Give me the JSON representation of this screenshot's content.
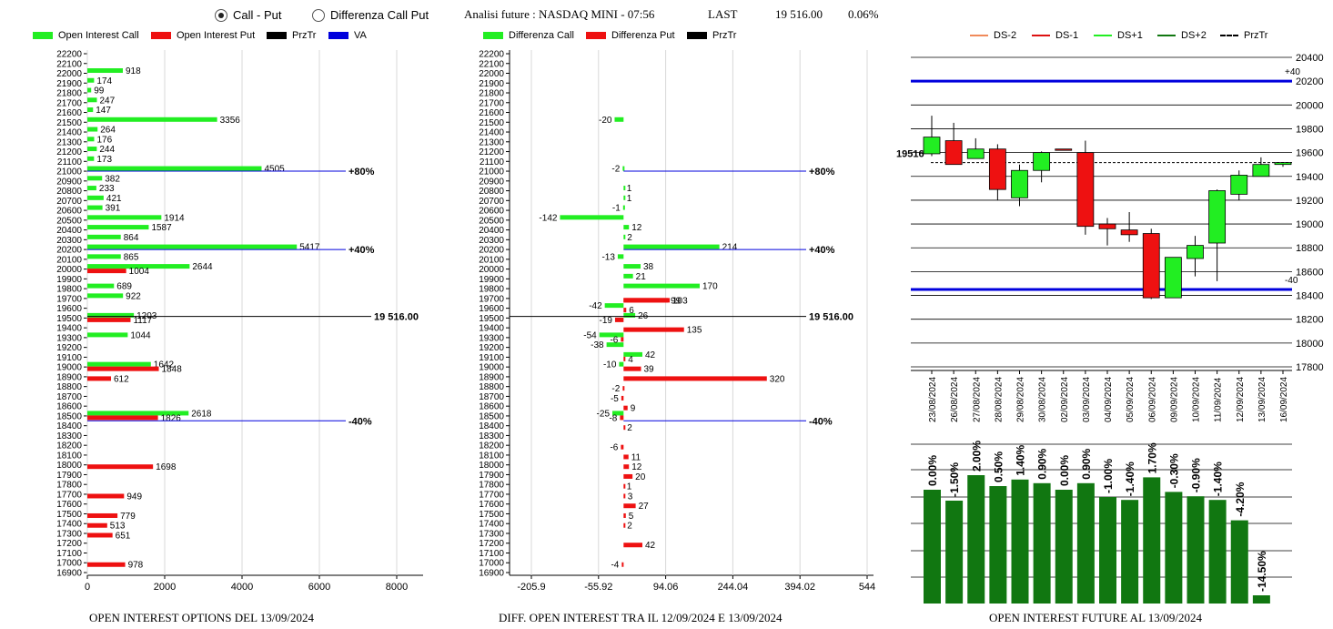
{
  "header": {
    "radio_callput": "Call - Put",
    "radio_diff": "Differenza Call Put",
    "title": "Analisi future : NASDAQ MINI - 07:56",
    "last_label": "LAST",
    "last_value": "19 516.00",
    "last_pct": "0.06%"
  },
  "colors": {
    "call": "#22ee22",
    "put": "#ee1111",
    "prztr": "#000000",
    "va": "#0000dd",
    "future_bar": "#117711"
  },
  "legend_left": [
    "Open Interest Call",
    "Open Interest Put",
    "PrzTr",
    "VA"
  ],
  "legend_mid": [
    "Differenza Call",
    "Differenza Put",
    "PrzTr"
  ],
  "legend_right": [
    "DS-2",
    "DS-1",
    "DS+1",
    "DS+2",
    "PrzTr"
  ],
  "captions": {
    "left": "OPEN INTEREST OPTIONS DEL 13/09/2024",
    "mid": "DIFF. OPEN INTEREST TRA IL 12/09/2024 E 13/09/2024",
    "right": "OPEN INTEREST FUTURE AL 13/09/2024"
  },
  "chart_data": [
    {
      "type": "bar",
      "orientation": "horizontal",
      "strike_labels": [
        "22200",
        "22100",
        "22000",
        "21900",
        "21800",
        "21700",
        "21600",
        "21500",
        "21400",
        "21300",
        "21200",
        "21100",
        "21000",
        "20900",
        "20800",
        "20700",
        "20600",
        "20500",
        "20400",
        "20300",
        "20200",
        "20100",
        "20000",
        "19900",
        "19800",
        "19700",
        "19600",
        "19500",
        "19400",
        "19300",
        "19200",
        "19100",
        "19000",
        "18900",
        "18800",
        "18700",
        "18600",
        "18500",
        "18400",
        "18300",
        "18200",
        "18100",
        "18000",
        "17900",
        "17800",
        "17700",
        "17600",
        "17500",
        "17400",
        "17300",
        "17200",
        "17100",
        "17000",
        "16900"
      ],
      "x_ticks": [
        "0",
        "2000",
        "4000",
        "6000",
        "8000"
      ],
      "xlim": [
        0,
        8000
      ],
      "series": [
        {
          "name": "Open Interest Call",
          "points": [
            {
              "strike": 22000,
              "value": 918
            },
            {
              "strike": 21900,
              "value": 174
            },
            {
              "strike": 21800,
              "value": 99
            },
            {
              "strike": 21700,
              "value": 247
            },
            {
              "strike": 21600,
              "value": 147
            },
            {
              "strike": 21500,
              "value": 3356
            },
            {
              "strike": 21400,
              "value": 264
            },
            {
              "strike": 21300,
              "value": 176
            },
            {
              "strike": 21200,
              "value": 244
            },
            {
              "strike": 21100,
              "value": 173
            },
            {
              "strike": 21000,
              "value": 4505
            },
            {
              "strike": 20900,
              "value": 382
            },
            {
              "strike": 20800,
              "value": 233
            },
            {
              "strike": 20700,
              "value": 421
            },
            {
              "strike": 20600,
              "value": 391
            },
            {
              "strike": 20500,
              "value": 1914
            },
            {
              "strike": 20400,
              "value": 1587
            },
            {
              "strike": 20300,
              "value": 864
            },
            {
              "strike": 20200,
              "value": 5417
            },
            {
              "strike": 20100,
              "value": 865
            },
            {
              "strike": 20000,
              "value": 2644
            },
            {
              "strike": 19800,
              "value": 689
            },
            {
              "strike": 19700,
              "value": 922
            },
            {
              "strike": 19500,
              "value": 1203
            },
            {
              "strike": 19300,
              "value": 1044
            },
            {
              "strike": 19000,
              "value": 1642
            },
            {
              "strike": 18500,
              "value": 2618
            }
          ]
        },
        {
          "name": "Open Interest Put",
          "points": [
            {
              "strike": 20000,
              "value": 1004
            },
            {
              "strike": 19500,
              "value": 1117
            },
            {
              "strike": 19000,
              "value": 1848
            },
            {
              "strike": 18900,
              "value": 612
            },
            {
              "strike": 18500,
              "value": 1826
            },
            {
              "strike": 18000,
              "value": 1698
            },
            {
              "strike": 17700,
              "value": 949
            },
            {
              "strike": 17500,
              "value": 779
            },
            {
              "strike": 17400,
              "value": 513
            },
            {
              "strike": 17300,
              "value": 651
            },
            {
              "strike": 17000,
              "value": 978
            }
          ]
        }
      ],
      "lines": [
        {
          "name": "PrzTr",
          "strike": 19516,
          "label": "19 516.00"
        },
        {
          "name": "VA",
          "strike": 21000,
          "label": "+80%"
        },
        {
          "name": "VA",
          "strike": 20200,
          "label": "+40%"
        },
        {
          "name": "VA",
          "strike": 18450,
          "label": "-40%"
        }
      ]
    },
    {
      "type": "bar",
      "orientation": "horizontal",
      "strike_labels": [
        "22200",
        "22100",
        "22000",
        "21900",
        "21800",
        "21700",
        "21600",
        "21500",
        "21400",
        "21300",
        "21200",
        "21100",
        "21000",
        "20900",
        "20800",
        "20700",
        "20600",
        "20500",
        "20400",
        "20300",
        "20200",
        "20100",
        "20000",
        "19900",
        "19800",
        "19700",
        "19600",
        "19500",
        "19400",
        "19300",
        "19200",
        "19100",
        "19000",
        "18900",
        "18800",
        "18700",
        "18600",
        "18500",
        "18400",
        "18300",
        "18200",
        "18100",
        "18000",
        "17900",
        "17800",
        "17700",
        "17600",
        "17500",
        "17400",
        "17300",
        "17200",
        "17100",
        "17000",
        "16900"
      ],
      "x_ticks": [
        "-205.9",
        "-55.92",
        "94.06",
        "244.04",
        "394.02",
        "544"
      ],
      "xlim": [
        -205.9,
        544
      ],
      "series": [
        {
          "name": "Differenza Call",
          "points": [
            {
              "strike": 21500,
              "value": -20
            },
            {
              "strike": 21000,
              "value": -2
            },
            {
              "strike": 20800,
              "value": 1
            },
            {
              "strike": 20700,
              "value": 1
            },
            {
              "strike": 20600,
              "value": -1
            },
            {
              "strike": 20500,
              "value": -142
            },
            {
              "strike": 20400,
              "value": 12
            },
            {
              "strike": 20300,
              "value": 2
            },
            {
              "strike": 20200,
              "value": 214
            },
            {
              "strike": 20100,
              "value": -13
            },
            {
              "strike": 20000,
              "value": 38
            },
            {
              "strike": 19900,
              "value": 21
            },
            {
              "strike": 19800,
              "value": 170
            },
            {
              "strike": 19600,
              "value": -42
            },
            {
              "strike": 19500,
              "value": 26
            },
            {
              "strike": 19300,
              "value": -54
            },
            {
              "strike": 19200,
              "value": -38
            },
            {
              "strike": 19100,
              "value": 42
            },
            {
              "strike": 19000,
              "value": -10
            },
            {
              "strike": 18500,
              "value": -25
            }
          ]
        },
        {
          "name": "Differenza Put",
          "points": [
            {
              "strike": 19700,
              "value": 103
            },
            {
              "strike": 19700,
              "value": 99
            },
            {
              "strike": 19600,
              "value": 6
            },
            {
              "strike": 19500,
              "value": -19
            },
            {
              "strike": 19400,
              "value": 135
            },
            {
              "strike": 19300,
              "value": -6
            },
            {
              "strike": 19100,
              "value": 4
            },
            {
              "strike": 19000,
              "value": 39
            },
            {
              "strike": 18900,
              "value": 320
            },
            {
              "strike": 18800,
              "value": -2
            },
            {
              "strike": 18700,
              "value": -5
            },
            {
              "strike": 18600,
              "value": 9
            },
            {
              "strike": 18500,
              "value": -8
            },
            {
              "strike": 18400,
              "value": 2
            },
            {
              "strike": 18200,
              "value": -6
            },
            {
              "strike": 18100,
              "value": 11
            },
            {
              "strike": 18000,
              "value": 12
            },
            {
              "strike": 17900,
              "value": 20
            },
            {
              "strike": 17800,
              "value": 1
            },
            {
              "strike": 17700,
              "value": 3
            },
            {
              "strike": 17600,
              "value": 27
            },
            {
              "strike": 17500,
              "value": 5
            },
            {
              "strike": 17400,
              "value": 2
            },
            {
              "strike": 17200,
              "value": 42
            },
            {
              "strike": 17000,
              "value": -4
            }
          ]
        }
      ],
      "lines": [
        {
          "name": "PrzTr",
          "strike": 19516,
          "label": "19 516.00"
        },
        {
          "name": "VA",
          "strike": 21000,
          "label": "+80%"
        },
        {
          "name": "VA",
          "strike": 20200,
          "label": "+40%"
        },
        {
          "name": "VA",
          "strike": 18450,
          "label": "-40%"
        }
      ]
    },
    {
      "type": "candlestick",
      "dates": [
        "23/08/2024",
        "26/08/2024",
        "27/08/2024",
        "28/08/2024",
        "29/08/2024",
        "30/08/2024",
        "02/09/2024",
        "03/09/2024",
        "04/09/2024",
        "05/09/2024",
        "06/09/2024",
        "09/09/2024",
        "10/09/2024",
        "11/09/2024",
        "12/09/2024",
        "13/09/2024",
        "16/09/2024"
      ],
      "ohlc": [
        [
          19590,
          19910,
          19570,
          19730
        ],
        [
          19700,
          19850,
          19500,
          19500
        ],
        [
          19550,
          19720,
          19550,
          19630
        ],
        [
          19630,
          19670,
          19200,
          19290
        ],
        [
          19220,
          19500,
          19150,
          19450
        ],
        [
          19450,
          19610,
          19350,
          19600
        ],
        [
          19630,
          19630,
          19620,
          19620
        ],
        [
          19600,
          19700,
          18910,
          18980
        ],
        [
          19000,
          19050,
          18820,
          18960
        ],
        [
          18950,
          19100,
          18850,
          18910
        ],
        [
          18920,
          18960,
          18370,
          18380
        ],
        [
          18380,
          18720,
          18380,
          18720
        ],
        [
          18710,
          18900,
          18560,
          18820
        ],
        [
          18840,
          19290,
          18520,
          19280
        ],
        [
          19250,
          19450,
          19200,
          19410
        ],
        [
          19400,
          19560,
          19400,
          19500
        ],
        [
          19500,
          19520,
          19480,
          19516
        ]
      ],
      "y_ticks": [
        "20400",
        "20200",
        "20000",
        "19800",
        "19600",
        "19400",
        "19200",
        "19000",
        "18800",
        "18600",
        "18400",
        "18200",
        "18000",
        "17800"
      ],
      "ylim": [
        17800,
        20400
      ],
      "price_label": "19516",
      "prztr": 19516,
      "ds_lines": [
        {
          "name": "+40",
          "value": 20200
        },
        {
          "name": "-40",
          "value": 18450
        }
      ]
    },
    {
      "type": "bar",
      "categories": [
        "23/08/2024",
        "26/08/2024",
        "27/08/2024",
        "28/08/2024",
        "29/08/2024",
        "30/08/2024",
        "02/09/2024",
        "03/09/2024",
        "04/09/2024",
        "05/09/2024",
        "06/09/2024",
        "09/09/2024",
        "10/09/2024",
        "11/09/2024",
        "12/09/2024",
        "13/09/2024",
        "16/09/2024"
      ],
      "labels": [
        "0.00%",
        "-1.50%",
        "2.00%",
        "0.50%",
        "1.40%",
        "0.90%",
        "0.00%",
        "0.90%",
        "-1.00%",
        "-1.40%",
        "1.70%",
        "-0.30%",
        "-0.90%",
        "-1.40%",
        "-4.20%",
        "-14.50%",
        ""
      ],
      "values": [
        0.0,
        -1.5,
        2.0,
        0.5,
        1.4,
        0.9,
        0.0,
        0.9,
        -1.0,
        -1.4,
        1.7,
        -0.3,
        -0.9,
        -1.4,
        -4.2,
        -14.5,
        0
      ]
    }
  ]
}
